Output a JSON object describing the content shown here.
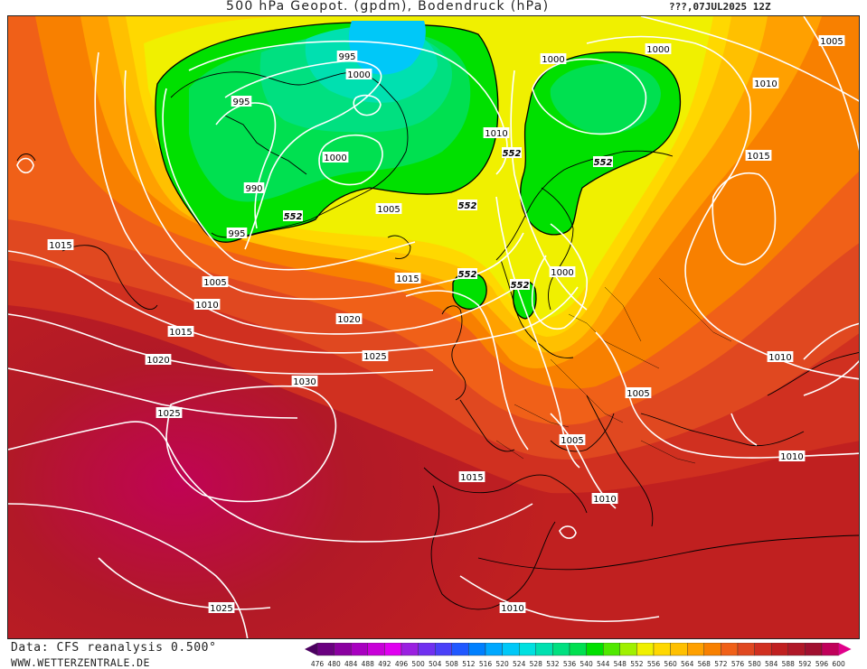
{
  "header": {
    "title": "500 hPa Geopot. (gpdm), Bodendruck (hPa)",
    "datetime": "???,07JUL2025 12Z"
  },
  "footer": {
    "data_source": "Data: CFS reanalysis 0.500°",
    "website": "WWW.WETTERZENTRALE.DE"
  },
  "legend": {
    "values": [
      "476",
      "480",
      "484",
      "488",
      "492",
      "496",
      "500",
      "504",
      "508",
      "512",
      "516",
      "520",
      "524",
      "528",
      "532",
      "536",
      "540",
      "544",
      "548",
      "552",
      "556",
      "560",
      "564",
      "568",
      "572",
      "576",
      "580",
      "584",
      "588",
      "592",
      "596",
      "600"
    ],
    "colors": [
      "#4b0060",
      "#6a0080",
      "#8a00a0",
      "#a800c0",
      "#c800d8",
      "#e000f0",
      "#9a20e0",
      "#7030f0",
      "#4a40f8",
      "#2058ff",
      "#0080ff",
      "#00a8ff",
      "#00c8f8",
      "#00e0e0",
      "#00e0b0",
      "#00e080",
      "#00e050",
      "#00e000",
      "#50e800",
      "#a0f000",
      "#f0f000",
      "#ffd800",
      "#ffc000",
      "#ffa000",
      "#f88000",
      "#f06018",
      "#e04820",
      "#d03020",
      "#c02020",
      "#b01828",
      "#a01030",
      "#c0005a"
    ]
  },
  "map": {
    "isobar_labels": [
      {
        "text": "995"
      },
      {
        "text": "1000"
      },
      {
        "text": "995"
      },
      {
        "text": "990"
      },
      {
        "text": "1000"
      },
      {
        "text": "995"
      },
      {
        "text": "1000"
      },
      {
        "text": "1000"
      },
      {
        "text": "1005"
      },
      {
        "text": "1010"
      },
      {
        "text": "1010"
      },
      {
        "text": "1015"
      },
      {
        "text": "1015"
      },
      {
        "text": "1005"
      },
      {
        "text": "1010"
      },
      {
        "text": "1015"
      },
      {
        "text": "1020"
      },
      {
        "text": "1015"
      },
      {
        "text": "1005"
      },
      {
        "text": "1020"
      },
      {
        "text": "1025"
      },
      {
        "text": "1030"
      },
      {
        "text": "1025"
      },
      {
        "text": "1000"
      },
      {
        "text": "1010"
      },
      {
        "text": "1005"
      },
      {
        "text": "1005"
      },
      {
        "text": "1015"
      },
      {
        "text": "1010"
      },
      {
        "text": "1010"
      },
      {
        "text": "1025"
      },
      {
        "text": "1010"
      }
    ],
    "geopotential_labels": [
      "552",
      "552",
      "552",
      "552",
      "552",
      "552"
    ]
  }
}
